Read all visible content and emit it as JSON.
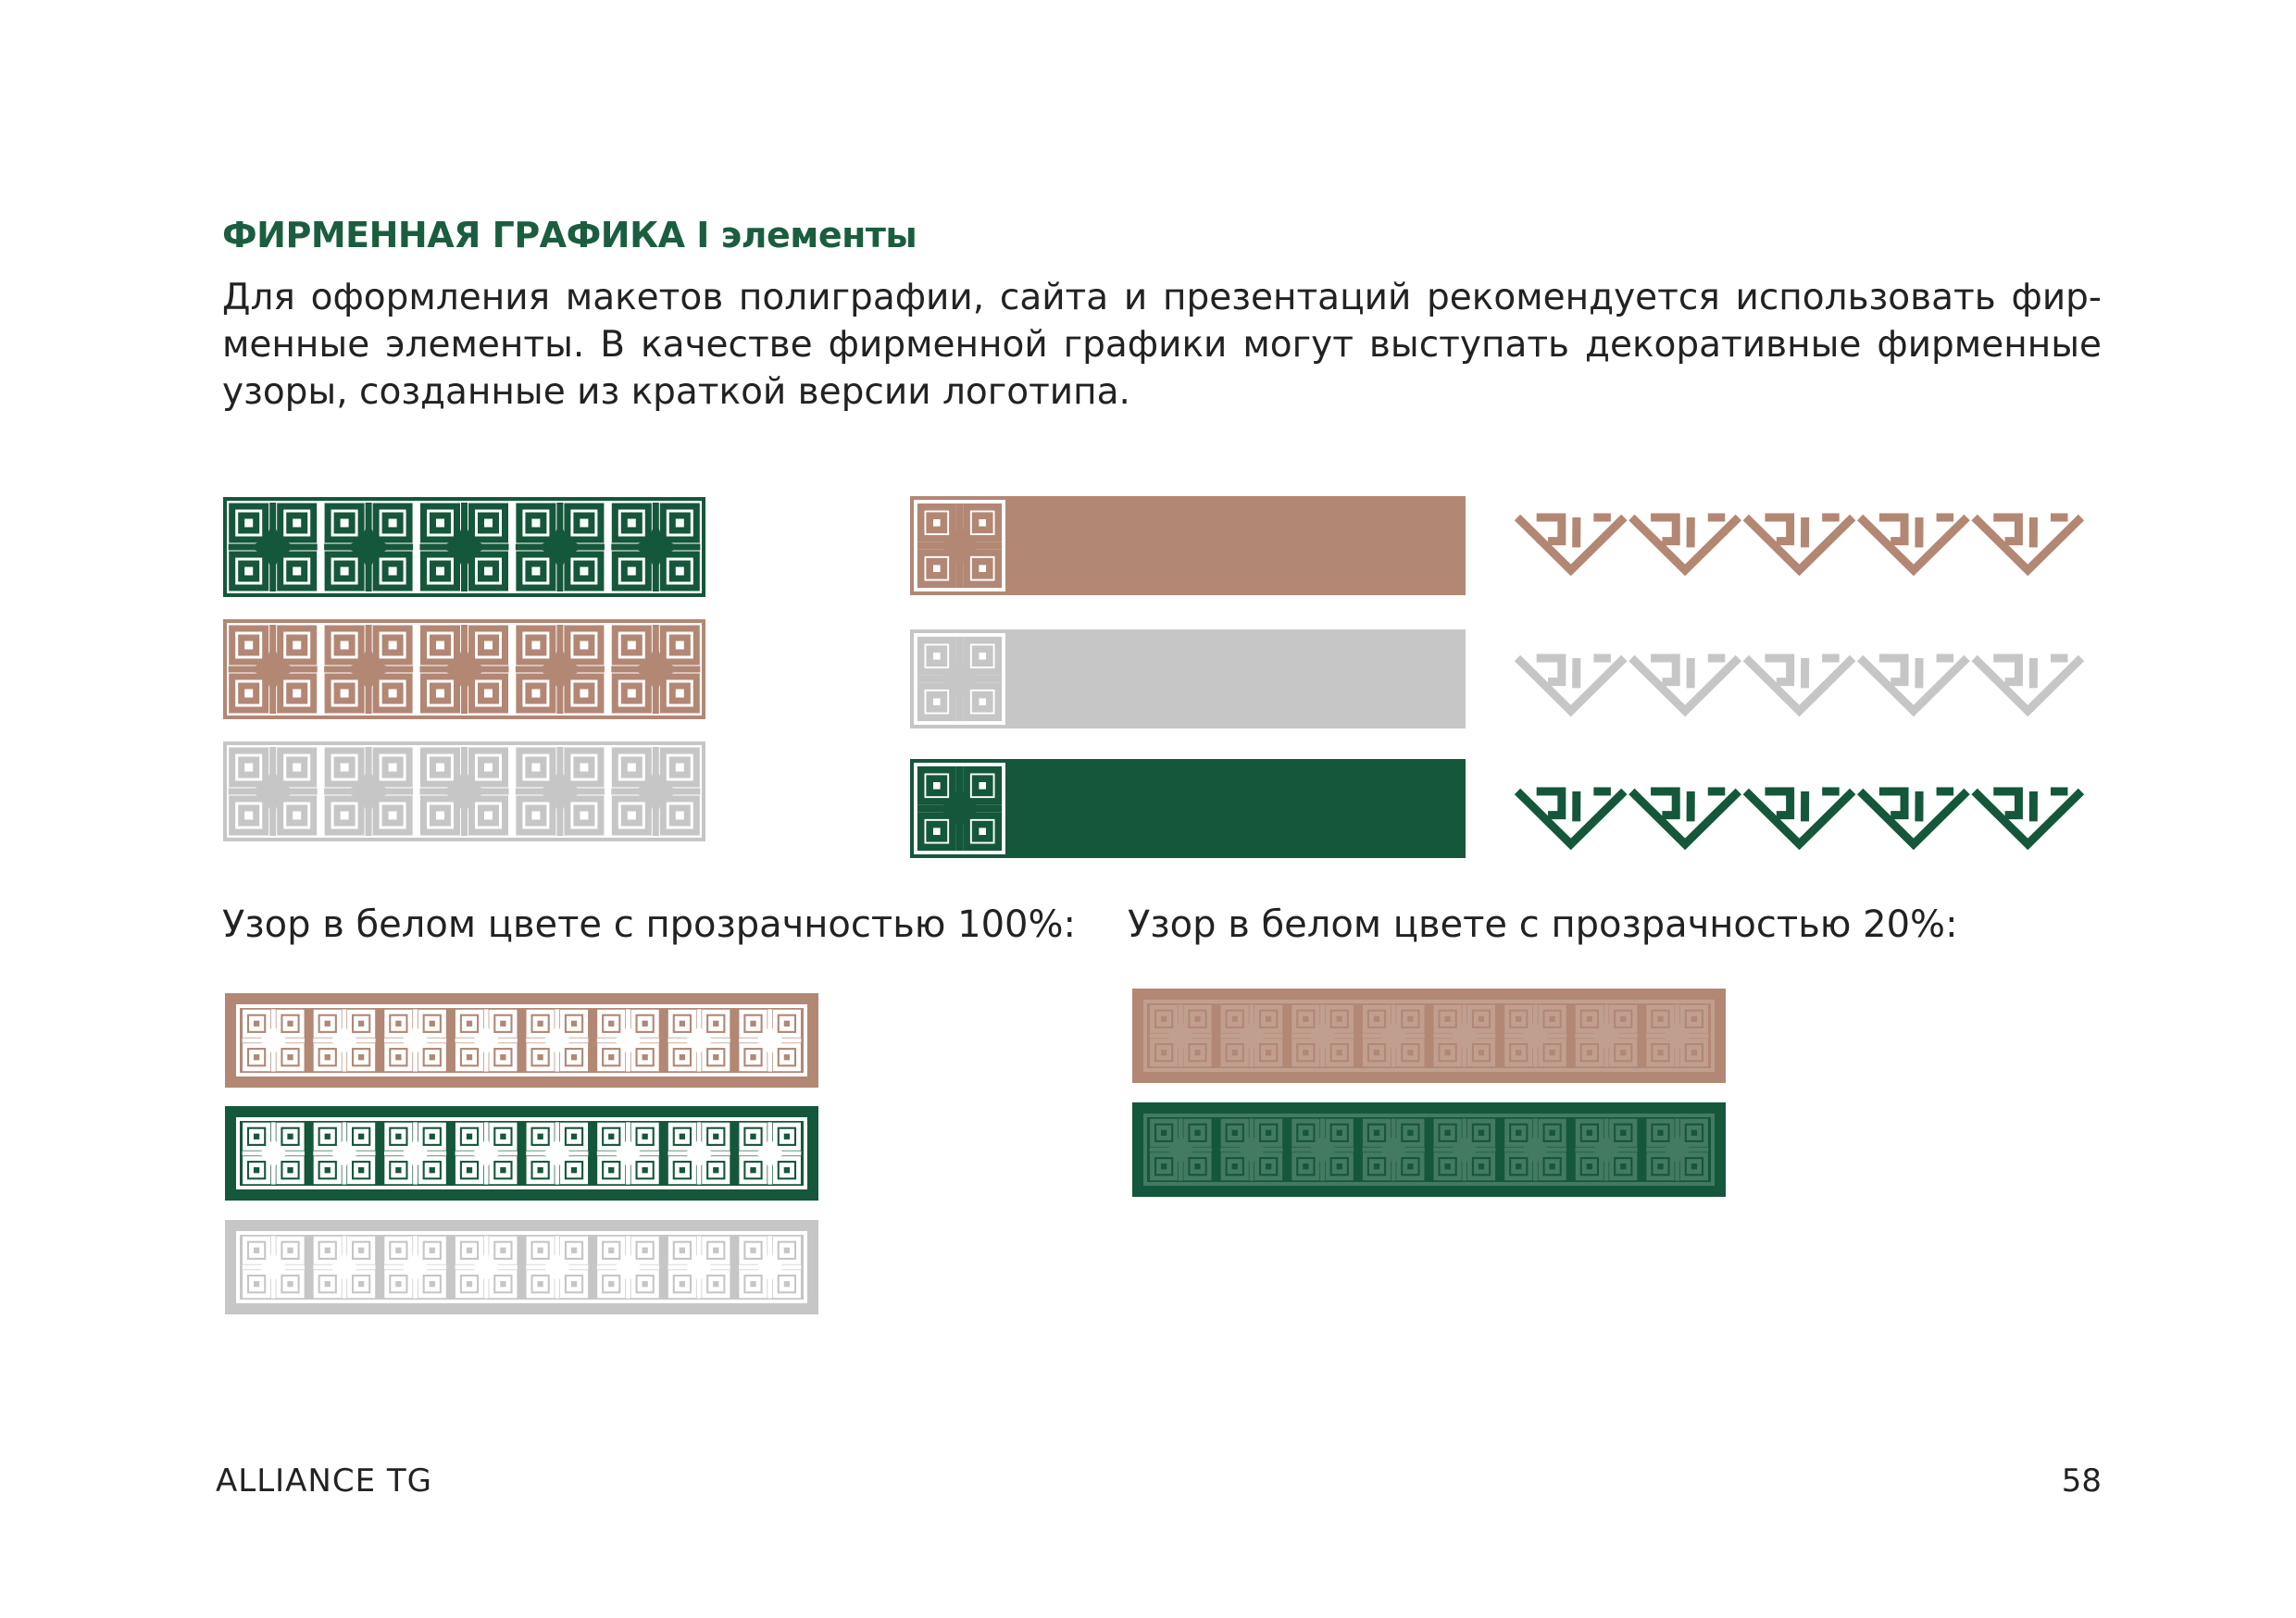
{
  "header": {
    "title": "ФИРМЕННАЯ ГРАФИКА I элементы",
    "intro": "Для оформления макетов полиграфии, сайта и презентаций рекомендуется использовать фир-менные элементы. В качестве фирменной графики могут выступать декоративные фирменные узоры, созданные из краткой версии логотипа."
  },
  "colors": {
    "green": "#15573a",
    "beige": "#b28774",
    "gray": "#c6c6c6",
    "white": "#ffffff"
  },
  "captions": {
    "opacity100": "Узор в белом цвете с прозрачностью 100%:",
    "opacity20": "Узор в белом цвете с прозрачностью 20%:"
  },
  "pattern_strips": [
    {
      "color": "green"
    },
    {
      "color": "beige"
    },
    {
      "color": "gray"
    }
  ],
  "tile_bars": [
    {
      "color": "beige"
    },
    {
      "color": "gray"
    },
    {
      "color": "green"
    }
  ],
  "zigzags": [
    {
      "color": "beige"
    },
    {
      "color": "gray"
    },
    {
      "color": "green"
    }
  ],
  "white_100": [
    {
      "background": "beige"
    },
    {
      "background": "green"
    },
    {
      "background": "gray"
    }
  ],
  "white_20": [
    {
      "background": "beige"
    },
    {
      "background": "green"
    }
  ],
  "footer": {
    "brand": "ALLIANCE TG",
    "page": "58"
  }
}
